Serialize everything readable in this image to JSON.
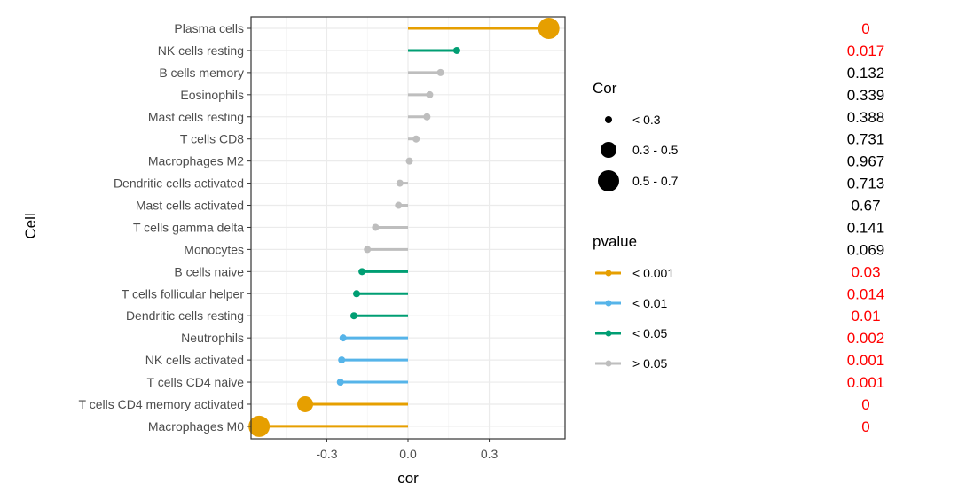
{
  "chart_data": {
    "type": "lollipop",
    "xlabel": "cor",
    "ylabel": "Cell",
    "xlim": [
      -0.58,
      0.58
    ],
    "x_ticks": [
      -0.3,
      0.0,
      0.3
    ],
    "x_tick_labels": [
      "-0.3",
      "0.0",
      "0.3"
    ],
    "categories": [
      "Plasma cells",
      "NK cells resting",
      "B cells memory",
      "Eosinophils",
      "Mast cells resting",
      "T cells CD8",
      "Macrophages M2",
      "Dendritic cells activated",
      "Mast cells activated",
      "T cells gamma delta",
      "Monocytes",
      "B cells naive",
      "T cells follicular helper",
      "Dendritic cells resting",
      "Neutrophils",
      "NK cells activated",
      "T cells CD4 naive",
      "T cells CD4 memory activated",
      "Macrophages M0"
    ],
    "cor": [
      0.52,
      0.18,
      0.12,
      0.08,
      0.07,
      0.03,
      0.005,
      -0.03,
      -0.035,
      -0.12,
      -0.15,
      -0.17,
      -0.19,
      -0.2,
      -0.24,
      -0.245,
      -0.25,
      -0.38,
      -0.55
    ],
    "pvalue_text": [
      "0",
      "0.017",
      "0.132",
      "0.339",
      "0.388",
      "0.731",
      "0.967",
      "0.713",
      "0.67",
      "0.141",
      "0.069",
      "0.03",
      "0.014",
      "0.01",
      "0.002",
      "0.001",
      "0.001",
      "0",
      "0"
    ],
    "pvalue_group": [
      "< 0.001",
      "< 0.05",
      "> 0.05",
      "> 0.05",
      "> 0.05",
      "> 0.05",
      "> 0.05",
      "> 0.05",
      "> 0.05",
      "> 0.05",
      "> 0.05",
      "< 0.05",
      "< 0.05",
      "< 0.05",
      "< 0.01",
      "< 0.01",
      "< 0.01",
      "< 0.001",
      "< 0.001"
    ],
    "size_group": [
      "0.5 - 0.7",
      "< 0.3",
      "< 0.3",
      "< 0.3",
      "< 0.3",
      "< 0.3",
      "< 0.3",
      "< 0.3",
      "< 0.3",
      "< 0.3",
      "< 0.3",
      "< 0.3",
      "< 0.3",
      "< 0.3",
      "< 0.3",
      "< 0.3",
      "< 0.3",
      "0.3 - 0.5",
      "0.5 - 0.7"
    ],
    "legend_cor": {
      "title": "Cor",
      "items": [
        "< 0.3",
        "0.3 - 0.5",
        "0.5 - 0.7"
      ]
    },
    "legend_pvalue": {
      "title": "pvalue",
      "items": [
        "< 0.001",
        "< 0.01",
        "< 0.05",
        "> 0.05"
      ]
    },
    "colors": {
      "< 0.001": "#E69F00",
      "< 0.01": "#56B4E9",
      "< 0.05": "#009E73",
      "> 0.05": "#BEBEBE",
      "significant_text": "#FF0000",
      "nonsignificant_text": "#000000"
    },
    "significance_threshold": 0.05
  }
}
